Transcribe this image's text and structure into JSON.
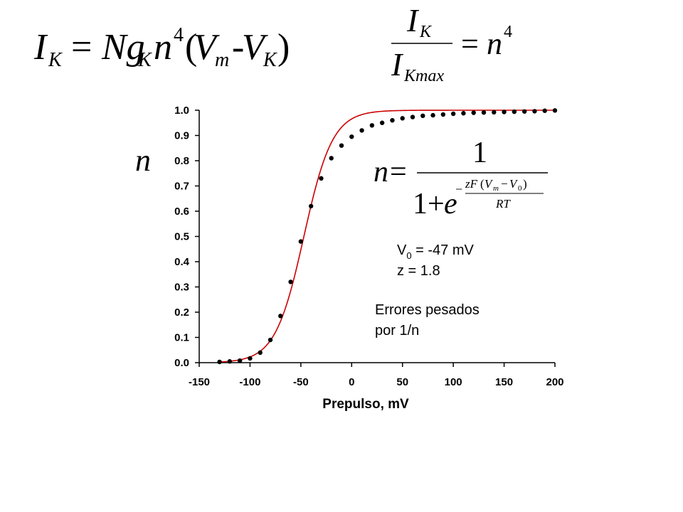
{
  "equations": {
    "current_formula": "I_K = N g_K n^4 (V_m - V_K)",
    "ratio_formula": "I_K / I_Kmax = n^4",
    "boltzmann_formula": "n = 1 / (1 + e^(-zF(V_m - V_0)/RT))"
  },
  "annotations": {
    "v0_label": "V",
    "v0_sub": "0",
    "v0_value": " = -47 mV",
    "z_text": "z = 1.8",
    "note_line1": "Errores pesados",
    "note_line2": "por 1/n"
  },
  "chart_data": {
    "type": "scatter",
    "xlabel": "Prepulso, mV",
    "ylabel": "n",
    "xlim": [
      -150,
      200
    ],
    "ylim": [
      0.0,
      1.0
    ],
    "xticks": [
      -150,
      -100,
      -50,
      0,
      50,
      100,
      150,
      200
    ],
    "xtick_labels": [
      "-150",
      "-100",
      "-50",
      "0",
      "50",
      "100",
      "150",
      "200"
    ],
    "yticks": [
      0.0,
      0.1,
      0.2,
      0.3,
      0.4,
      0.5,
      0.6,
      0.7,
      0.8,
      0.9,
      1.0
    ],
    "ytick_labels": [
      "0.0",
      "0.1",
      "0.2",
      "0.3",
      "0.4",
      "0.5",
      "0.6",
      "0.7",
      "0.8",
      "0.9",
      "1.0"
    ],
    "grid": false,
    "colors": {
      "points": "#000000",
      "fit": "#cc0000"
    },
    "series": [
      {
        "kind": "points",
        "x": [
          -130,
          -120,
          -110,
          -100,
          -90,
          -80,
          -70,
          -60,
          -50,
          -40,
          -30,
          -20,
          -10,
          0,
          10,
          20,
          30,
          40,
          50,
          60,
          70,
          80,
          90,
          100,
          110,
          120,
          130,
          140,
          150,
          160,
          170,
          180,
          190,
          200
        ],
        "y": [
          0.003,
          0.005,
          0.008,
          0.017,
          0.04,
          0.09,
          0.185,
          0.32,
          0.48,
          0.62,
          0.73,
          0.81,
          0.86,
          0.895,
          0.92,
          0.94,
          0.95,
          0.96,
          0.968,
          0.973,
          0.978,
          0.98,
          0.983,
          0.986,
          0.988,
          0.99,
          0.991,
          0.992,
          0.993,
          0.994,
          0.995,
          0.996,
          0.998,
          0.999
        ]
      },
      {
        "kind": "fit",
        "v0": -47,
        "z": 1.8,
        "x_start": -130,
        "x_end": 200
      }
    ]
  }
}
